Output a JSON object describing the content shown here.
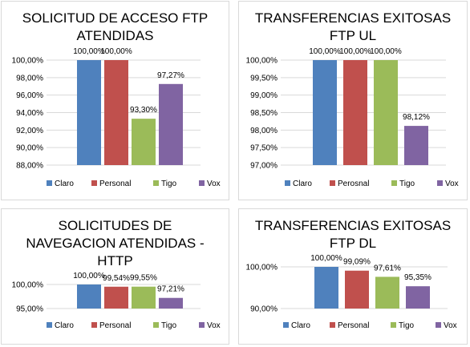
{
  "colors": {
    "Claro": "#4f81bd",
    "Personal": "#c0504d",
    "Tigo": "#9bbb59",
    "Vox": "#8064a2",
    "grid": "#d9d9d9"
  },
  "chart_data": [
    {
      "type": "bar",
      "title_lines": [
        "SOLICITUD DE ACCESO FTP",
        "ATENDIDAS"
      ],
      "categories": [
        "Claro",
        "Personal",
        "Tigo",
        "Vox"
      ],
      "values": [
        100.0,
        100.0,
        93.3,
        97.27
      ],
      "value_labels": [
        "100,00%",
        "100,00%",
        "93,30%",
        "97,27%"
      ],
      "ylim": [
        88,
        100
      ],
      "yticks": [
        100,
        98,
        96,
        94,
        92,
        90,
        88
      ],
      "ytick_labels": [
        "100,00%",
        "98,00%",
        "96,00%",
        "94,00%",
        "92,00%",
        "90,00%",
        "88,00%"
      ],
      "legend": [
        "Claro",
        "Personal",
        "Tigo",
        "Vox"
      ],
      "legend_position": "bottom",
      "grid": true
    },
    {
      "type": "bar",
      "title_lines": [
        "TRANSFERENCIAS EXITOSAS",
        "FTP UL"
      ],
      "categories": [
        "Claro",
        "Perosnal",
        "Tigo",
        "Vox"
      ],
      "values": [
        100.0,
        100.0,
        100.0,
        98.12
      ],
      "value_labels": [
        "100,00%",
        "100,00%",
        "100,00%",
        "98,12%"
      ],
      "ylim": [
        97,
        100
      ],
      "yticks": [
        100,
        99.5,
        99,
        98.5,
        98,
        97.5,
        97
      ],
      "ytick_labels": [
        "100,00%",
        "99,50%",
        "99,00%",
        "98,50%",
        "98,00%",
        "97,50%",
        "97,00%"
      ],
      "legend": [
        "Claro",
        "Perosnal",
        "Tigo",
        "Vox"
      ],
      "legend_position": "bottom",
      "grid": true
    },
    {
      "type": "bar",
      "title_lines": [
        "SOLICITUDES DE",
        "NAVEGACION ATENDIDAS -",
        "HTTP"
      ],
      "categories": [
        "Claro",
        "Personal",
        "Tigo",
        "Vox"
      ],
      "values": [
        100.0,
        99.54,
        99.55,
        97.21
      ],
      "value_labels": [
        "100,00%",
        "99,54%",
        "99,55%",
        "97,21%"
      ],
      "ylim": [
        95,
        100
      ],
      "yticks": [
        100,
        95
      ],
      "ytick_labels": [
        "100,00%",
        "95,00%"
      ],
      "legend": [
        "Claro",
        "Personal",
        "Tigo",
        "Vox"
      ],
      "legend_position": "bottom",
      "grid": true
    },
    {
      "type": "bar",
      "title_lines": [
        "TRANSFERENCIAS EXITOSAS",
        "FTP DL"
      ],
      "categories": [
        "Claro",
        "Personal",
        "Tigo",
        "Vox"
      ],
      "values": [
        100.0,
        99.09,
        97.61,
        95.35
      ],
      "value_labels": [
        "100,00%",
        "99,09%",
        "97,61%",
        "95,35%"
      ],
      "ylim": [
        90,
        100
      ],
      "yticks": [
        100,
        90
      ],
      "ytick_labels": [
        "100,00%",
        "90,00%"
      ],
      "legend": [
        "Claro",
        "Personal",
        "Tigo",
        "Vox"
      ],
      "legend_position": "bottom",
      "grid": true
    }
  ]
}
